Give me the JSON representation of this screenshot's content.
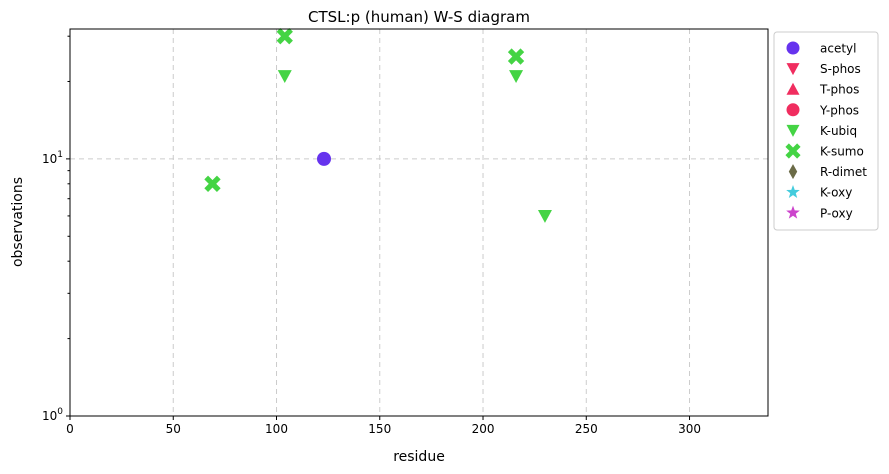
{
  "chart_data": {
    "type": "scatter",
    "title": "CTSL:p (human) W-S diagram",
    "xlabel": "residue",
    "ylabel": "observations",
    "xlim": [
      0,
      338
    ],
    "ylim": [
      1,
      32
    ],
    "yscale": "log",
    "grid": true,
    "legend_position": "outside-right",
    "x_ticks": [
      0,
      50,
      100,
      150,
      200,
      250,
      300
    ],
    "x_tick_labels": [
      "0",
      "50",
      "100",
      "150",
      "200",
      "250",
      "300"
    ],
    "y_ticks": [
      1,
      10
    ],
    "y_tick_labels": [
      {
        "base": "10",
        "exp": "0"
      },
      {
        "base": "10",
        "exp": "1"
      }
    ],
    "series": [
      {
        "name": "acetyl",
        "marker": "circle",
        "color": "#6633ee",
        "points": [
          [
            123,
            10
          ]
        ]
      },
      {
        "name": "S-phos",
        "marker": "triangle-down",
        "color": "#f02d5f",
        "points": []
      },
      {
        "name": "T-phos",
        "marker": "triangle-up",
        "color": "#f02d5f",
        "points": []
      },
      {
        "name": "Y-phos",
        "marker": "circle",
        "color": "#f02d5f",
        "points": []
      },
      {
        "name": "K-ubiq",
        "marker": "triangle-down",
        "color": "#44d444",
        "points": [
          [
            104,
            21
          ],
          [
            216,
            21
          ],
          [
            230,
            6
          ]
        ]
      },
      {
        "name": "K-sumo",
        "marker": "x",
        "color": "#44d444",
        "points": [
          [
            69,
            8
          ],
          [
            104,
            30
          ],
          [
            216,
            25
          ]
        ]
      },
      {
        "name": "R-dimet",
        "marker": "diamond",
        "color": "#6b6b47",
        "points": []
      },
      {
        "name": "K-oxy",
        "marker": "star",
        "color": "#44ccdd",
        "points": []
      },
      {
        "name": "P-oxy",
        "marker": "star",
        "color": "#cc44cc",
        "points": []
      }
    ]
  }
}
